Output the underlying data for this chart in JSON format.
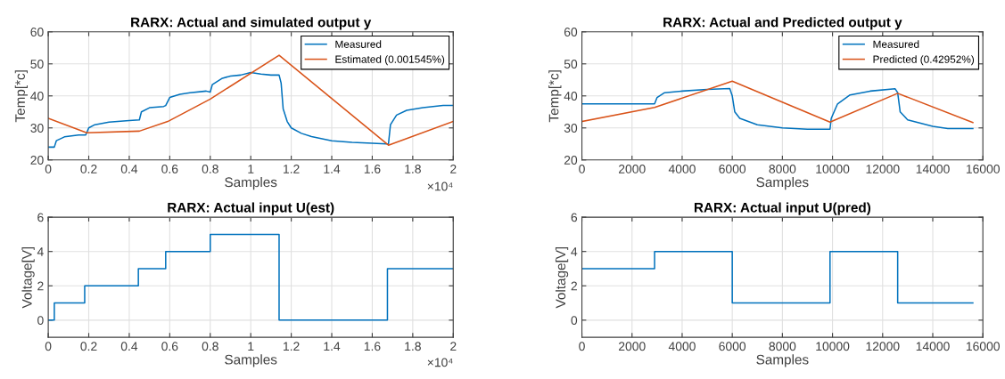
{
  "chart_data": [
    {
      "type": "line",
      "title": "RARX: Actual and simulated output y",
      "xlabel": "Samples",
      "ylabel": "Temp[*c]",
      "xlim": [
        0,
        2
      ],
      "xticks": [
        0,
        0.2,
        0.4,
        0.6,
        0.8,
        1,
        1.2,
        1.4,
        1.6,
        1.8,
        2
      ],
      "ylim": [
        20,
        60
      ],
      "yticks": [
        20,
        30,
        40,
        50,
        60
      ],
      "grid": true,
      "legend": "top right",
      "annotations": [
        "×10⁴"
      ],
      "series": [
        {
          "name": "Measured",
          "color": "#0072bd",
          "x": [
            0,
            0.03,
            0.04,
            0.08,
            0.15,
            0.185,
            0.2,
            0.23,
            0.3,
            0.4,
            0.45,
            0.46,
            0.5,
            0.57,
            0.58,
            0.6,
            0.65,
            0.7,
            0.78,
            0.8,
            0.81,
            0.86,
            0.9,
            0.95,
            1.0,
            1.05,
            1.1,
            1.14,
            1.15,
            1.16,
            1.18,
            1.2,
            1.25,
            1.3,
            1.4,
            1.5,
            1.6,
            1.67,
            1.68,
            1.69,
            1.72,
            1.77,
            1.85,
            1.95,
            2.0
          ],
          "values": [
            24,
            24,
            26,
            27.2,
            27.8,
            27.8,
            30,
            31,
            31.8,
            32.3,
            32.5,
            35,
            36.3,
            36.7,
            37,
            39.5,
            40.5,
            41,
            41.5,
            41.2,
            43.5,
            45.5,
            46.2,
            46.5,
            47.3,
            46.8,
            46.5,
            46.5,
            44,
            36,
            32,
            30,
            28.3,
            27.3,
            26,
            25.5,
            25.2,
            25,
            25,
            31,
            34,
            35.5,
            36.3,
            37,
            37
          ]
        },
        {
          "name": "Estimated (0.001545%)",
          "color": "#d95319",
          "x": [
            0,
            0.19,
            0.45,
            0.59,
            0.8,
            1.14,
            1.68,
            2.0
          ],
          "values": [
            33,
            28.5,
            29,
            32,
            39,
            52.7,
            24.6,
            32
          ]
        }
      ]
    },
    {
      "type": "line",
      "title": "RARX: Actual and Predicted output y",
      "xlabel": "Samples",
      "ylabel": "Temp[*c]",
      "xlim": [
        0,
        16000
      ],
      "xticks": [
        0,
        2000,
        4000,
        6000,
        8000,
        10000,
        12000,
        14000,
        16000
      ],
      "ylim": [
        20,
        60
      ],
      "yticks": [
        20,
        30,
        40,
        50,
        60
      ],
      "grid": true,
      "legend": "top right",
      "series": [
        {
          "name": "Measured",
          "color": "#0072bd",
          "x": [
            0,
            2900,
            3000,
            3300,
            4000,
            5000,
            5900,
            6000,
            6100,
            6300,
            7000,
            8000,
            9000,
            9900,
            9950,
            10200,
            10700,
            11500,
            12500,
            12600,
            12700,
            13000,
            14000,
            14600,
            15600
          ],
          "values": [
            37.5,
            37.5,
            39.5,
            41,
            41.5,
            42,
            42.3,
            40,
            35,
            33,
            31,
            30,
            29.6,
            29.6,
            33,
            37.5,
            40.3,
            41.5,
            42.2,
            41,
            35,
            32.5,
            30.5,
            29.8,
            29.8
          ]
        },
        {
          "name": "Predicted (0.42952%)",
          "color": "#d95319",
          "x": [
            0,
            2900,
            6000,
            9900,
            12600,
            15600
          ],
          "values": [
            32,
            36.4,
            44.6,
            31.8,
            40.8,
            31.7
          ]
        }
      ]
    },
    {
      "type": "step",
      "title": "RARX: Actual input U(est)",
      "xlabel": "Samples",
      "ylabel": "Voltage[V]",
      "xlim": [
        0,
        2
      ],
      "xticks": [
        0,
        0.2,
        0.4,
        0.6,
        0.8,
        1,
        1.2,
        1.4,
        1.6,
        1.8,
        2
      ],
      "ylim": [
        -1,
        6
      ],
      "yticks": [
        0,
        2,
        4,
        6
      ],
      "grid": true,
      "annotations": [
        "×10⁴"
      ],
      "series": [
        {
          "color": "#0072bd",
          "x": [
            0,
            0.03,
            0.18,
            0.445,
            0.58,
            0.8,
            1.14,
            1.675,
            2.0
          ],
          "values": [
            0,
            1,
            2,
            3,
            4,
            5,
            0,
            3,
            3
          ]
        }
      ]
    },
    {
      "type": "step",
      "title": "RARX: Actual input U(pred)",
      "xlabel": "Samples",
      "ylabel": "Voltage[V]",
      "xlim": [
        0,
        16000
      ],
      "xticks": [
        0,
        2000,
        4000,
        6000,
        8000,
        10000,
        12000,
        14000,
        16000
      ],
      "ylim": [
        -1,
        6
      ],
      "yticks": [
        0,
        2,
        4,
        6
      ],
      "grid": true,
      "series": [
        {
          "color": "#0072bd",
          "x": [
            0,
            2900,
            6000,
            9900,
            12600,
            15600
          ],
          "values": [
            3,
            4,
            1,
            4,
            1,
            1
          ]
        }
      ]
    }
  ]
}
